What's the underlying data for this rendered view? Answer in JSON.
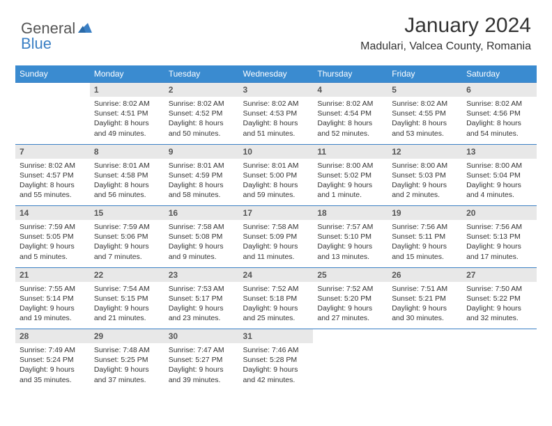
{
  "brand": {
    "part1": "General",
    "part2": "Blue"
  },
  "title": "January 2024",
  "location": "Madulari, Valcea County, Romania",
  "colors": {
    "header_bg": "#3a8bd0",
    "header_text": "#ffffff",
    "daynum_bg": "#e8e8e8",
    "daynum_text": "#555555",
    "cell_text": "#333333",
    "rule": "#3a7fc4",
    "brand_blue": "#3a7fc4",
    "brand_gray": "#555555",
    "page_bg": "#ffffff"
  },
  "typography": {
    "title_fontsize": 30,
    "location_fontsize": 16,
    "weekday_fontsize": 12,
    "daynum_fontsize": 12,
    "body_fontsize": 10.5
  },
  "weekdays": [
    "Sunday",
    "Monday",
    "Tuesday",
    "Wednesday",
    "Thursday",
    "Friday",
    "Saturday"
  ],
  "weeks": [
    [
      null,
      {
        "n": "1",
        "sr": "8:02 AM",
        "ss": "4:51 PM",
        "dl": "8 hours and 49 minutes."
      },
      {
        "n": "2",
        "sr": "8:02 AM",
        "ss": "4:52 PM",
        "dl": "8 hours and 50 minutes."
      },
      {
        "n": "3",
        "sr": "8:02 AM",
        "ss": "4:53 PM",
        "dl": "8 hours and 51 minutes."
      },
      {
        "n": "4",
        "sr": "8:02 AM",
        "ss": "4:54 PM",
        "dl": "8 hours and 52 minutes."
      },
      {
        "n": "5",
        "sr": "8:02 AM",
        "ss": "4:55 PM",
        "dl": "8 hours and 53 minutes."
      },
      {
        "n": "6",
        "sr": "8:02 AM",
        "ss": "4:56 PM",
        "dl": "8 hours and 54 minutes."
      }
    ],
    [
      {
        "n": "7",
        "sr": "8:02 AM",
        "ss": "4:57 PM",
        "dl": "8 hours and 55 minutes."
      },
      {
        "n": "8",
        "sr": "8:01 AM",
        "ss": "4:58 PM",
        "dl": "8 hours and 56 minutes."
      },
      {
        "n": "9",
        "sr": "8:01 AM",
        "ss": "4:59 PM",
        "dl": "8 hours and 58 minutes."
      },
      {
        "n": "10",
        "sr": "8:01 AM",
        "ss": "5:00 PM",
        "dl": "8 hours and 59 minutes."
      },
      {
        "n": "11",
        "sr": "8:00 AM",
        "ss": "5:02 PM",
        "dl": "9 hours and 1 minute."
      },
      {
        "n": "12",
        "sr": "8:00 AM",
        "ss": "5:03 PM",
        "dl": "9 hours and 2 minutes."
      },
      {
        "n": "13",
        "sr": "8:00 AM",
        "ss": "5:04 PM",
        "dl": "9 hours and 4 minutes."
      }
    ],
    [
      {
        "n": "14",
        "sr": "7:59 AM",
        "ss": "5:05 PM",
        "dl": "9 hours and 5 minutes."
      },
      {
        "n": "15",
        "sr": "7:59 AM",
        "ss": "5:06 PM",
        "dl": "9 hours and 7 minutes."
      },
      {
        "n": "16",
        "sr": "7:58 AM",
        "ss": "5:08 PM",
        "dl": "9 hours and 9 minutes."
      },
      {
        "n": "17",
        "sr": "7:58 AM",
        "ss": "5:09 PM",
        "dl": "9 hours and 11 minutes."
      },
      {
        "n": "18",
        "sr": "7:57 AM",
        "ss": "5:10 PM",
        "dl": "9 hours and 13 minutes."
      },
      {
        "n": "19",
        "sr": "7:56 AM",
        "ss": "5:11 PM",
        "dl": "9 hours and 15 minutes."
      },
      {
        "n": "20",
        "sr": "7:56 AM",
        "ss": "5:13 PM",
        "dl": "9 hours and 17 minutes."
      }
    ],
    [
      {
        "n": "21",
        "sr": "7:55 AM",
        "ss": "5:14 PM",
        "dl": "9 hours and 19 minutes."
      },
      {
        "n": "22",
        "sr": "7:54 AM",
        "ss": "5:15 PM",
        "dl": "9 hours and 21 minutes."
      },
      {
        "n": "23",
        "sr": "7:53 AM",
        "ss": "5:17 PM",
        "dl": "9 hours and 23 minutes."
      },
      {
        "n": "24",
        "sr": "7:52 AM",
        "ss": "5:18 PM",
        "dl": "9 hours and 25 minutes."
      },
      {
        "n": "25",
        "sr": "7:52 AM",
        "ss": "5:20 PM",
        "dl": "9 hours and 27 minutes."
      },
      {
        "n": "26",
        "sr": "7:51 AM",
        "ss": "5:21 PM",
        "dl": "9 hours and 30 minutes."
      },
      {
        "n": "27",
        "sr": "7:50 AM",
        "ss": "5:22 PM",
        "dl": "9 hours and 32 minutes."
      }
    ],
    [
      {
        "n": "28",
        "sr": "7:49 AM",
        "ss": "5:24 PM",
        "dl": "9 hours and 35 minutes."
      },
      {
        "n": "29",
        "sr": "7:48 AM",
        "ss": "5:25 PM",
        "dl": "9 hours and 37 minutes."
      },
      {
        "n": "30",
        "sr": "7:47 AM",
        "ss": "5:27 PM",
        "dl": "9 hours and 39 minutes."
      },
      {
        "n": "31",
        "sr": "7:46 AM",
        "ss": "5:28 PM",
        "dl": "9 hours and 42 minutes."
      },
      null,
      null,
      null
    ]
  ],
  "labels": {
    "sunrise": "Sunrise:",
    "sunset": "Sunset:",
    "daylight": "Daylight:"
  }
}
